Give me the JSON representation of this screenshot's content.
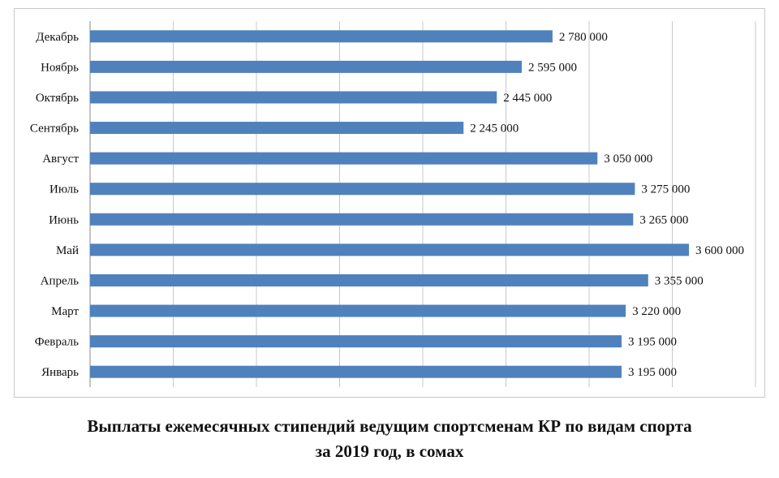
{
  "chart_data": {
    "type": "bar",
    "orientation": "horizontal",
    "title": "Выплаты ежемесячных стипендий ведущим спортсменам КР по видам спорта",
    "subtitle": "за 2019 год, в сомах",
    "categories": [
      "Январь",
      "Февраль",
      "Март",
      "Апрель",
      "Май",
      "Июнь",
      "Июль",
      "Август",
      "Сентябрь",
      "Октябрь",
      "Ноябрь",
      "Декабрь"
    ],
    "values": [
      3195000,
      3195000,
      3220000,
      3355000,
      3600000,
      3265000,
      3275000,
      3050000,
      2245000,
      2445000,
      2595000,
      2780000
    ],
    "value_labels": [
      "3 195 000",
      "3 195 000",
      "3 220 000",
      "3 355 000",
      "3 600 000",
      "3 265 000",
      "3 275 000",
      "3 050 000",
      "2 245 000",
      "2 445 000",
      "2 595 000",
      "2 780 000"
    ],
    "xlim": [
      0,
      4000000
    ],
    "xgrid_step": 500000,
    "grid": true,
    "legend": "none",
    "bar_color": "#4f81bd",
    "grid_color": "#c8c8c8",
    "xlabel": "",
    "ylabel": ""
  }
}
